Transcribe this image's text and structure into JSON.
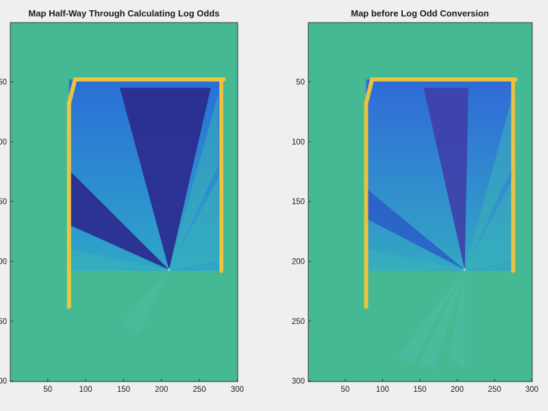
{
  "chart_data": [
    {
      "type": "heatmap",
      "title": "Map Half-Way Through Calculating Log Odds",
      "xlabel": "",
      "ylabel": "",
      "xlim": [
        1,
        300
      ],
      "ylim": [
        1,
        300
      ],
      "y_reversed": true,
      "xticks": [
        50,
        100,
        150,
        200,
        250,
        300
      ],
      "yticks": [
        50,
        100,
        150,
        200,
        250,
        300
      ],
      "colormap": "parula",
      "background_color": "#44b993",
      "robot_position": {
        "x": 210,
        "y": 207
      },
      "room_bounds": {
        "x_min": 78,
        "x_max": 282,
        "y_min": 48,
        "y_max": 208
      },
      "regions": [
        {
          "label": "unknown",
          "color": "#44b993"
        },
        {
          "label": "free-space",
          "color": "#1e7fe0"
        },
        {
          "label": "strong-free",
          "color": "#2b2d8f"
        },
        {
          "label": "occupied-wall",
          "color": "#f7c63a"
        }
      ]
    },
    {
      "type": "heatmap",
      "title": "Map before Log Odd Conversion",
      "xlabel": "",
      "ylabel": "",
      "xlim": [
        1,
        300
      ],
      "ylim": [
        1,
        300
      ],
      "y_reversed": true,
      "xticks": [
        50,
        100,
        150,
        200,
        250,
        300
      ],
      "yticks": [
        50,
        100,
        150,
        200,
        250,
        300
      ],
      "colormap": "parula",
      "background_color": "#44b993",
      "robot_position": {
        "x": 210,
        "y": 207
      },
      "room_bounds": {
        "x_min": 78,
        "x_max": 278,
        "y_min": 48,
        "y_max": 208
      },
      "regions": [
        {
          "label": "unknown",
          "color": "#44b993"
        },
        {
          "label": "free-space",
          "color": "#1e7fe0"
        },
        {
          "label": "strong-free",
          "color": "#3f3fa8"
        },
        {
          "label": "occupied-wall",
          "color": "#f2c53d"
        }
      ]
    }
  ]
}
